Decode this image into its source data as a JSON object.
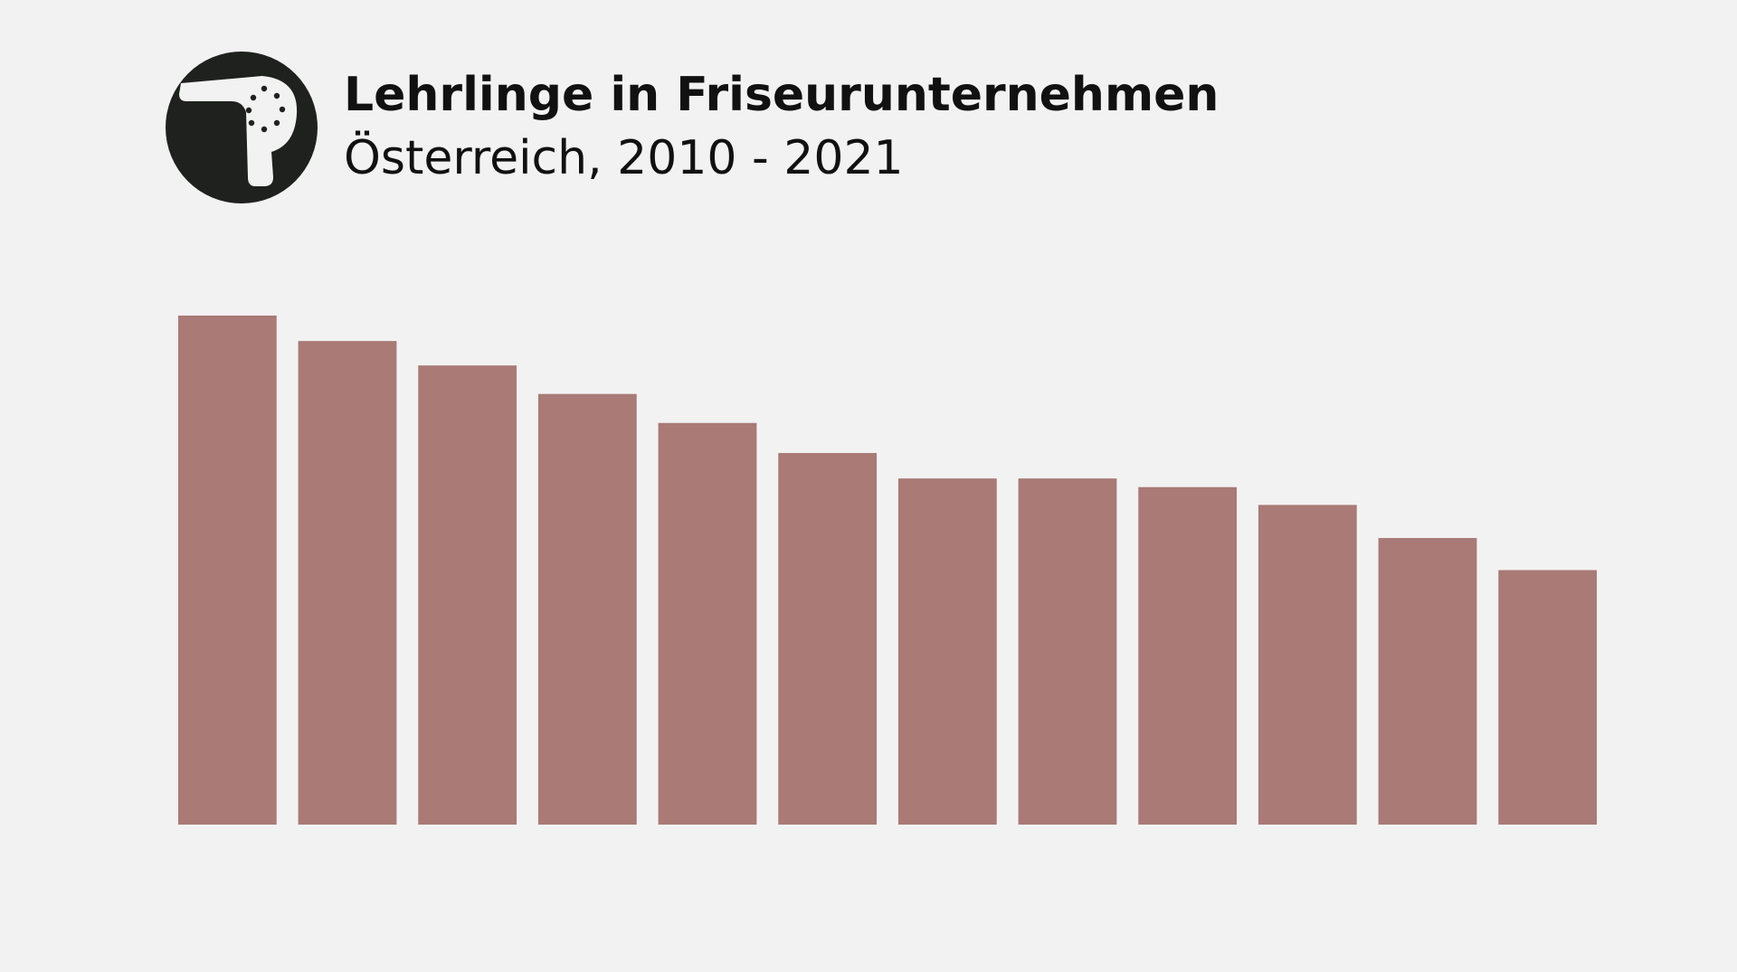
{
  "chart_data": {
    "type": "bar",
    "title": "Lehrlinge in Friseurunternehmen",
    "subtitle": "Österreich, 2010 - 2021",
    "values": [
      100,
      95,
      90.2,
      84.6,
      78.9,
      73,
      68,
      68,
      66.3,
      62.8,
      56.3,
      50
    ],
    "color": "#a97a76",
    "ylim": [
      0,
      100
    ]
  }
}
